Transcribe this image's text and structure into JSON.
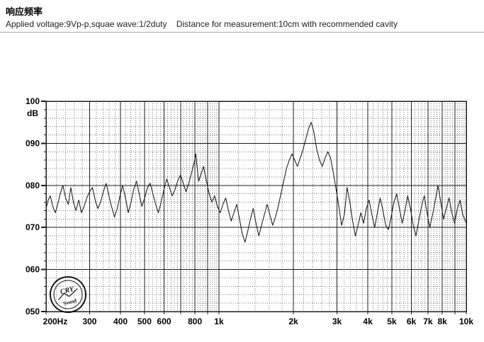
{
  "page": {
    "title": "响应频率",
    "subtitle": "Applied voltage:9Vp-p,squae wave:1/2duty    Distance for measurement:10cm with recommended cavity"
  },
  "stamp": {
    "line1": "CRY",
    "line2": "Sound"
  },
  "colors": {
    "grid_major": "#1c1c1c",
    "grid_minor": "#7a7a7a",
    "curve": "#101010",
    "text": "#000000",
    "stamp": "#000000"
  },
  "chart_data": {
    "type": "line",
    "title": "响应频率",
    "xlabel": "",
    "ylabel": "dB",
    "y_unit": "dB",
    "x_scale": "log",
    "xlim": [
      200,
      10000
    ],
    "ylim": [
      50,
      100
    ],
    "grid": true,
    "legend": "none",
    "x_ticks": [
      {
        "f": 200,
        "label": "200Hz"
      },
      {
        "f": 300,
        "label": "300"
      },
      {
        "f": 400,
        "label": "400"
      },
      {
        "f": 500,
        "label": "500"
      },
      {
        "f": 600,
        "label": "600"
      },
      {
        "f": 800,
        "label": "800"
      },
      {
        "f": 1000,
        "label": "1k"
      },
      {
        "f": 2000,
        "label": "2k"
      },
      {
        "f": 3000,
        "label": "3k"
      },
      {
        "f": 4000,
        "label": "4k"
      },
      {
        "f": 5000,
        "label": "5k"
      },
      {
        "f": 6000,
        "label": "6k"
      },
      {
        "f": 7000,
        "label": "7k"
      },
      {
        "f": 8000,
        "label": "8k"
      },
      {
        "f": 10000,
        "label": "10k"
      }
    ],
    "y_ticks": [
      {
        "v": 100,
        "label": "100"
      },
      {
        "v": 90,
        "label": "090"
      },
      {
        "v": 80,
        "label": "080"
      },
      {
        "v": 70,
        "label": "070"
      },
      {
        "v": 60,
        "label": "060"
      },
      {
        "v": 50,
        "label": "050"
      }
    ],
    "points": [
      [
        200,
        74.5
      ],
      [
        204,
        76.5
      ],
      [
        208,
        77.5
      ],
      [
        213,
        75
      ],
      [
        218,
        73.5
      ],
      [
        223,
        75.5
      ],
      [
        228,
        78
      ],
      [
        234,
        80
      ],
      [
        240,
        77
      ],
      [
        246,
        75.5
      ],
      [
        252,
        79.5
      ],
      [
        258,
        76
      ],
      [
        264,
        74
      ],
      [
        271,
        76.5
      ],
      [
        278,
        73.5
      ],
      [
        285,
        75
      ],
      [
        292,
        77
      ],
      [
        300,
        78.5
      ],
      [
        308,
        79.5
      ],
      [
        316,
        76.5
      ],
      [
        324,
        74.5
      ],
      [
        332,
        76
      ],
      [
        341,
        78.5
      ],
      [
        350,
        80.5
      ],
      [
        359,
        77.5
      ],
      [
        368,
        75
      ],
      [
        378,
        72.5
      ],
      [
        388,
        74.5
      ],
      [
        398,
        77.5
      ],
      [
        408,
        80
      ],
      [
        419,
        77
      ],
      [
        430,
        73.5
      ],
      [
        441,
        76
      ],
      [
        452,
        79
      ],
      [
        464,
        81
      ],
      [
        476,
        78
      ],
      [
        488,
        75
      ],
      [
        501,
        77
      ],
      [
        514,
        79.5
      ],
      [
        527,
        80.5
      ],
      [
        541,
        78
      ],
      [
        555,
        75.5
      ],
      [
        569,
        73.5
      ],
      [
        584,
        76
      ],
      [
        599,
        79
      ],
      [
        615,
        81.5
      ],
      [
        631,
        79.5
      ],
      [
        647,
        77.5
      ],
      [
        664,
        79
      ],
      [
        681,
        81
      ],
      [
        699,
        82.5
      ],
      [
        717,
        80.5
      ],
      [
        736,
        78.5
      ],
      [
        755,
        80.5
      ],
      [
        775,
        83
      ],
      [
        795,
        85.5
      ],
      [
        806,
        87.5
      ],
      [
        815,
        84.5
      ],
      [
        828,
        81
      ],
      [
        845,
        82.5
      ],
      [
        867,
        84.5
      ],
      [
        890,
        81
      ],
      [
        913,
        78
      ],
      [
        937,
        76
      ],
      [
        961,
        77.5
      ],
      [
        986,
        75
      ],
      [
        1012,
        73.5
      ],
      [
        1038,
        75.5
      ],
      [
        1065,
        77
      ],
      [
        1093,
        74
      ],
      [
        1121,
        71.5
      ],
      [
        1150,
        73.5
      ],
      [
        1180,
        75.5
      ],
      [
        1211,
        72
      ],
      [
        1242,
        68.5
      ],
      [
        1274,
        66.5
      ],
      [
        1307,
        69
      ],
      [
        1341,
        72
      ],
      [
        1376,
        74.5
      ],
      [
        1412,
        71
      ],
      [
        1449,
        68
      ],
      [
        1487,
        70.5
      ],
      [
        1526,
        73
      ],
      [
        1566,
        75.5
      ],
      [
        1607,
        73
      ],
      [
        1649,
        70.5
      ],
      [
        1692,
        72.5
      ],
      [
        1736,
        75
      ],
      [
        1781,
        78
      ],
      [
        1827,
        81
      ],
      [
        1875,
        84
      ],
      [
        1924,
        86
      ],
      [
        1974,
        87.5
      ],
      [
        2025,
        86
      ],
      [
        2078,
        84.5
      ],
      [
        2132,
        86.5
      ],
      [
        2187,
        88.5
      ],
      [
        2244,
        91
      ],
      [
        2302,
        93.5
      ],
      [
        2362,
        95
      ],
      [
        2423,
        92.5
      ],
      [
        2486,
        88.5
      ],
      [
        2551,
        86
      ],
      [
        2617,
        84.5
      ],
      [
        2685,
        86.5
      ],
      [
        2755,
        88
      ],
      [
        2827,
        86.5
      ],
      [
        2900,
        83
      ],
      [
        2976,
        79
      ],
      [
        3053,
        75
      ],
      [
        3132,
        70.5
      ],
      [
        3213,
        73
      ],
      [
        3297,
        79.5
      ],
      [
        3383,
        76
      ],
      [
        3471,
        71.5
      ],
      [
        3561,
        68
      ],
      [
        3653,
        70.5
      ],
      [
        3748,
        73.5
      ],
      [
        3845,
        71
      ],
      [
        3945,
        74.5
      ],
      [
        4048,
        76.5
      ],
      [
        4153,
        73
      ],
      [
        4261,
        70
      ],
      [
        4372,
        73.5
      ],
      [
        4485,
        77
      ],
      [
        4602,
        74
      ],
      [
        4722,
        70.5
      ],
      [
        4844,
        69.5
      ],
      [
        4970,
        72.5
      ],
      [
        5099,
        76
      ],
      [
        5232,
        78
      ],
      [
        5368,
        74.5
      ],
      [
        5507,
        71
      ],
      [
        5650,
        74
      ],
      [
        5797,
        77.5
      ],
      [
        5948,
        74.5
      ],
      [
        6102,
        70.5
      ],
      [
        6261,
        68
      ],
      [
        6424,
        71.5
      ],
      [
        6591,
        75
      ],
      [
        6762,
        77.5
      ],
      [
        6938,
        73.5
      ],
      [
        7118,
        70
      ],
      [
        7303,
        73
      ],
      [
        7493,
        76.5
      ],
      [
        7688,
        80
      ],
      [
        7888,
        76
      ],
      [
        8093,
        72
      ],
      [
        8303,
        74.5
      ],
      [
        8519,
        77
      ],
      [
        8740,
        73.5
      ],
      [
        8967,
        71
      ],
      [
        9200,
        74.5
      ],
      [
        9439,
        76.5
      ],
      [
        9684,
        73
      ],
      [
        9935,
        71.5
      ],
      [
        10000,
        71
      ]
    ]
  }
}
